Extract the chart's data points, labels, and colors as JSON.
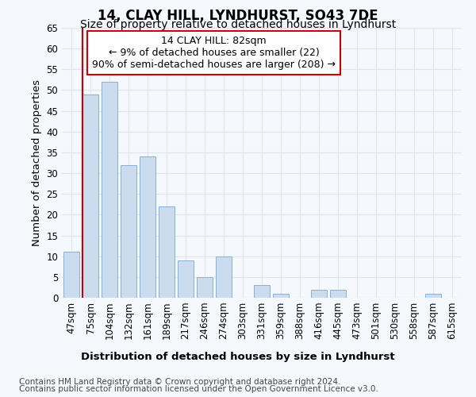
{
  "title": "14, CLAY HILL, LYNDHURST, SO43 7DE",
  "subtitle": "Size of property relative to detached houses in Lyndhurst",
  "xlabel": "Distribution of detached houses by size in Lyndhurst",
  "ylabel": "Number of detached properties",
  "categories": [
    "47sqm",
    "75sqm",
    "104sqm",
    "132sqm",
    "161sqm",
    "189sqm",
    "217sqm",
    "246sqm",
    "274sqm",
    "303sqm",
    "331sqm",
    "359sqm",
    "388sqm",
    "416sqm",
    "445sqm",
    "473sqm",
    "501sqm",
    "530sqm",
    "558sqm",
    "587sqm",
    "615sqm"
  ],
  "values": [
    11,
    49,
    52,
    32,
    34,
    22,
    9,
    5,
    10,
    0,
    3,
    1,
    0,
    2,
    2,
    0,
    0,
    0,
    0,
    1,
    0
  ],
  "bar_color": "#ccdcef",
  "bar_edge_color": "#8ab0d4",
  "highlight_bar_index": 1,
  "highlight_line_color": "#cc0000",
  "annotation_text": "14 CLAY HILL: 82sqm\n← 9% of detached houses are smaller (22)\n90% of semi-detached houses are larger (208) →",
  "annotation_box_edge_color": "#cc0000",
  "ylim": [
    0,
    65
  ],
  "yticks": [
    0,
    5,
    10,
    15,
    20,
    25,
    30,
    35,
    40,
    45,
    50,
    55,
    60,
    65
  ],
  "footer_line1": "Contains HM Land Registry data © Crown copyright and database right 2024.",
  "footer_line2": "Contains public sector information licensed under the Open Government Licence v3.0.",
  "bg_color": "#f5f8fd",
  "plot_bg_color": "#f5f8fd",
  "grid_color": "#dde5f0",
  "title_fontsize": 12,
  "subtitle_fontsize": 10,
  "axis_label_fontsize": 9.5,
  "tick_fontsize": 8.5,
  "annotation_fontsize": 9,
  "footer_fontsize": 7.5
}
